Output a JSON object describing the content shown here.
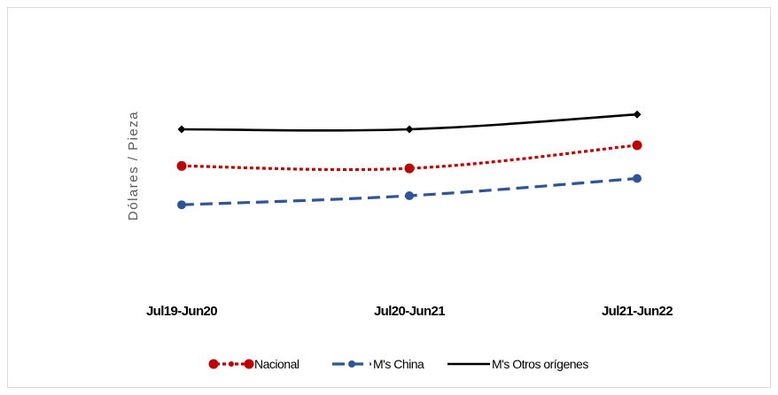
{
  "chart_data": {
    "type": "line",
    "ylabel": "Dólares / Pieza",
    "xlabel": "",
    "categories": [
      "Jul19-Jun20",
      "Jul20-Jun21",
      "Jul21-Jun22"
    ],
    "ylim": [
      0,
      10
    ],
    "grid": false,
    "legend_position": "bottom",
    "series": [
      {
        "name": "Nacional",
        "values": [
          4.72,
          4.63,
          5.5
        ],
        "color": "#c00000",
        "line_style": "dotted",
        "marker": "circle"
      },
      {
        "name": "M's China",
        "values": [
          3.26,
          3.6,
          4.25
        ],
        "color": "#2e5597",
        "line_style": "dashed",
        "marker": "circle"
      },
      {
        "name": "M's Otros orígenes",
        "values": [
          6.1,
          6.1,
          6.66
        ],
        "color": "#000000",
        "line_style": "solid",
        "marker": "diamond"
      }
    ]
  }
}
